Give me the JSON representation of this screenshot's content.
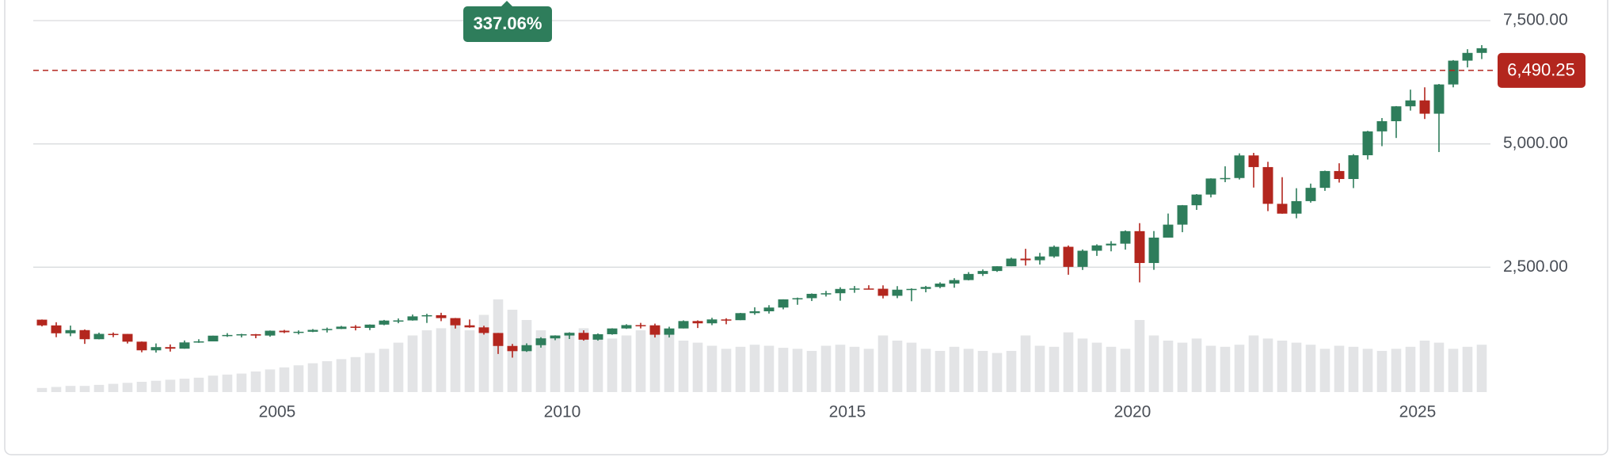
{
  "chart_data": {
    "type": "candlestick",
    "x": [
      2000.875,
      2001.125,
      2001.375,
      2001.625,
      2001.875,
      2002.125,
      2002.375,
      2002.625,
      2002.875,
      2003.125,
      2003.375,
      2003.625,
      2003.875,
      2004.125,
      2004.375,
      2004.625,
      2004.875,
      2005.125,
      2005.375,
      2005.625,
      2005.875,
      2006.125,
      2006.375,
      2006.625,
      2006.875,
      2007.125,
      2007.375,
      2007.625,
      2007.875,
      2008.125,
      2008.375,
      2008.625,
      2008.875,
      2009.125,
      2009.375,
      2009.625,
      2009.875,
      2010.125,
      2010.375,
      2010.625,
      2010.875,
      2011.125,
      2011.375,
      2011.625,
      2011.875,
      2012.125,
      2012.375,
      2012.625,
      2012.875,
      2013.125,
      2013.375,
      2013.625,
      2013.875,
      2014.125,
      2014.375,
      2014.625,
      2014.875,
      2015.125,
      2015.375,
      2015.625,
      2015.875,
      2016.125,
      2016.375,
      2016.625,
      2016.875,
      2017.125,
      2017.375,
      2017.625,
      2017.875,
      2018.125,
      2018.375,
      2018.625,
      2018.875,
      2019.125,
      2019.375,
      2019.625,
      2019.875,
      2020.125,
      2020.375,
      2020.625,
      2020.875,
      2021.125,
      2021.375,
      2021.625,
      2021.875,
      2022.125,
      2022.375,
      2022.625,
      2022.875,
      2023.125,
      2023.375,
      2023.625,
      2023.875,
      2024.125,
      2024.375,
      2024.625,
      2024.875,
      2025.125,
      2025.375,
      2025.625,
      2025.875,
      2026.125
    ],
    "open": [
      1436,
      1320,
      1160,
      1224,
      1040,
      1148,
      1147,
      990,
      815,
      880,
      848,
      975,
      996,
      1112,
      1126,
      1141,
      1114,
      1212,
      1181,
      1191,
      1229,
      1248,
      1295,
      1270,
      1336,
      1418,
      1421,
      1503,
      1527,
      1468,
      1322,
      1280,
      1166,
      903,
      798,
      919,
      1057,
      1115,
      1169,
      1031,
      1141,
      1258,
      1326,
      1321,
      1131,
      1258,
      1408,
      1362,
      1441,
      1426,
      1569,
      1606,
      1682,
      1848,
      1872,
      1960,
      1972,
      2059,
      2068,
      2063,
      1920,
      2044,
      2060,
      2099,
      2168,
      2239,
      2363,
      2423,
      2519,
      2674,
      2641,
      2718,
      2914,
      2507,
      2834,
      2942,
      2977,
      3231,
      2585,
      3100,
      3363,
      3756,
      3973,
      4298,
      4308,
      4766,
      4530,
      3785,
      3586,
      3840,
      4109,
      4450,
      4288,
      4770,
      5254,
      5460,
      5762,
      5882,
      5612,
      6205,
      6688,
      6845
    ],
    "high": [
      1440,
      1384,
      1316,
      1238,
      1173,
      1176,
      1147,
      994,
      954,
      934,
      1015,
      1040,
      1112,
      1163,
      1150,
      1146,
      1217,
      1229,
      1219,
      1246,
      1275,
      1310,
      1326,
      1340,
      1431,
      1461,
      1540,
      1556,
      1576,
      1471,
      1440,
      1313,
      1167,
      944,
      956,
      1080,
      1119,
      1180,
      1220,
      1157,
      1262,
      1344,
      1371,
      1356,
      1293,
      1422,
      1422,
      1475,
      1465,
      1574,
      1687,
      1730,
      1849,
      1884,
      1968,
      2019,
      2093,
      2119,
      2134,
      2132,
      2116,
      2072,
      2121,
      2194,
      2277,
      2401,
      2454,
      2519,
      2694,
      2873,
      2790,
      2940,
      2940,
      2860,
      2964,
      3028,
      3247,
      3393,
      3233,
      3588,
      3760,
      3983,
      4302,
      4546,
      4808,
      4818,
      4637,
      4325,
      4101,
      4195,
      4458,
      4607,
      4793,
      5265,
      5524,
      5767,
      6100,
      6147,
      6215,
      6699,
      6920,
      7002
    ],
    "low": [
      1300,
      1081,
      1101,
      945,
      1037,
      1081,
      953,
      775,
      768,
      789,
      847,
      966,
      1018,
      1087,
      1076,
      1060,
      1090,
      1163,
      1137,
      1183,
      1176,
      1245,
      1219,
      1224,
      1323,
      1364,
      1416,
      1370,
      1406,
      1256,
      1272,
      1133,
      741,
      667,
      783,
      869,
      1020,
      1044,
      1011,
      1011,
      1131,
      1249,
      1259,
      1075,
      1075,
      1258,
      1267,
      1325,
      1343,
      1426,
      1536,
      1560,
      1646,
      1738,
      1814,
      1905,
      1821,
      1981,
      2048,
      1867,
      1872,
      1810,
      1991,
      2074,
      2084,
      2233,
      2322,
      2405,
      2520,
      2533,
      2553,
      2691,
      2347,
      2444,
      2729,
      2822,
      2856,
      2192,
      2447,
      3100,
      3210,
      3662,
      3915,
      4224,
      4278,
      4115,
      3637,
      3584,
      3492,
      3809,
      4048,
      4216,
      4104,
      4683,
      4954,
      5120,
      5675,
      5505,
      4835,
      6147,
      6551,
      6720
    ],
    "close": [
      1320,
      1160,
      1224,
      1040,
      1148,
      1147,
      990,
      815,
      880,
      848,
      975,
      996,
      1112,
      1126,
      1141,
      1114,
      1212,
      1181,
      1191,
      1229,
      1248,
      1295,
      1270,
      1336,
      1418,
      1421,
      1503,
      1527,
      1468,
      1322,
      1280,
      1166,
      903,
      798,
      919,
      1057,
      1115,
      1169,
      1031,
      1141,
      1258,
      1326,
      1321,
      1131,
      1258,
      1408,
      1362,
      1441,
      1426,
      1569,
      1606,
      1682,
      1848,
      1872,
      1960,
      1972,
      2059,
      2068,
      2063,
      1920,
      2044,
      2060,
      2099,
      2168,
      2239,
      2363,
      2423,
      2519,
      2674,
      2641,
      2718,
      2914,
      2507,
      2834,
      2942,
      2977,
      3231,
      2585,
      3100,
      3363,
      3756,
      3973,
      4298,
      4308,
      4766,
      4530,
      3785,
      3586,
      3840,
      4109,
      4450,
      4288,
      4770,
      5254,
      5460,
      5762,
      5882,
      5612,
      6205,
      6688,
      6845,
      6940
    ],
    "volume": [
      4,
      5,
      6,
      6,
      7,
      8,
      9,
      10,
      11,
      12,
      13,
      14,
      16,
      17,
      18,
      20,
      22,
      24,
      26,
      28,
      30,
      32,
      34,
      38,
      42,
      48,
      55,
      60,
      62,
      65,
      60,
      75,
      90,
      80,
      70,
      60,
      55,
      58,
      62,
      55,
      52,
      55,
      60,
      65,
      58,
      50,
      48,
      45,
      42,
      44,
      46,
      45,
      43,
      42,
      40,
      45,
      46,
      44,
      42,
      55,
      50,
      48,
      42,
      40,
      44,
      42,
      40,
      38,
      40,
      55,
      45,
      44,
      58,
      52,
      48,
      44,
      42,
      70,
      55,
      50,
      48,
      52,
      45,
      44,
      46,
      55,
      52,
      50,
      48,
      46,
      42,
      45,
      44,
      42,
      40,
      42,
      44,
      50,
      48,
      42,
      44,
      46
    ],
    "up_color": "#2e7d5b",
    "down_color": "#b3261e",
    "volume_color": "#e3e4e6",
    "xlim": [
      2000.75,
      2026.25
    ],
    "xticks": [
      2005,
      2010,
      2015,
      2020,
      2025
    ],
    "ylim": [
      0,
      7500
    ],
    "yticks": [
      {
        "value": 2500,
        "label": "2,500.00"
      },
      {
        "value": 5000,
        "label": "5,000.00"
      },
      {
        "value": 7500,
        "label": "7,500.00"
      }
    ],
    "grid": true,
    "price_line": {
      "value": 6490.25,
      "label": "6,490.25"
    },
    "change": {
      "value": 337.06,
      "label": "337.06%"
    }
  }
}
